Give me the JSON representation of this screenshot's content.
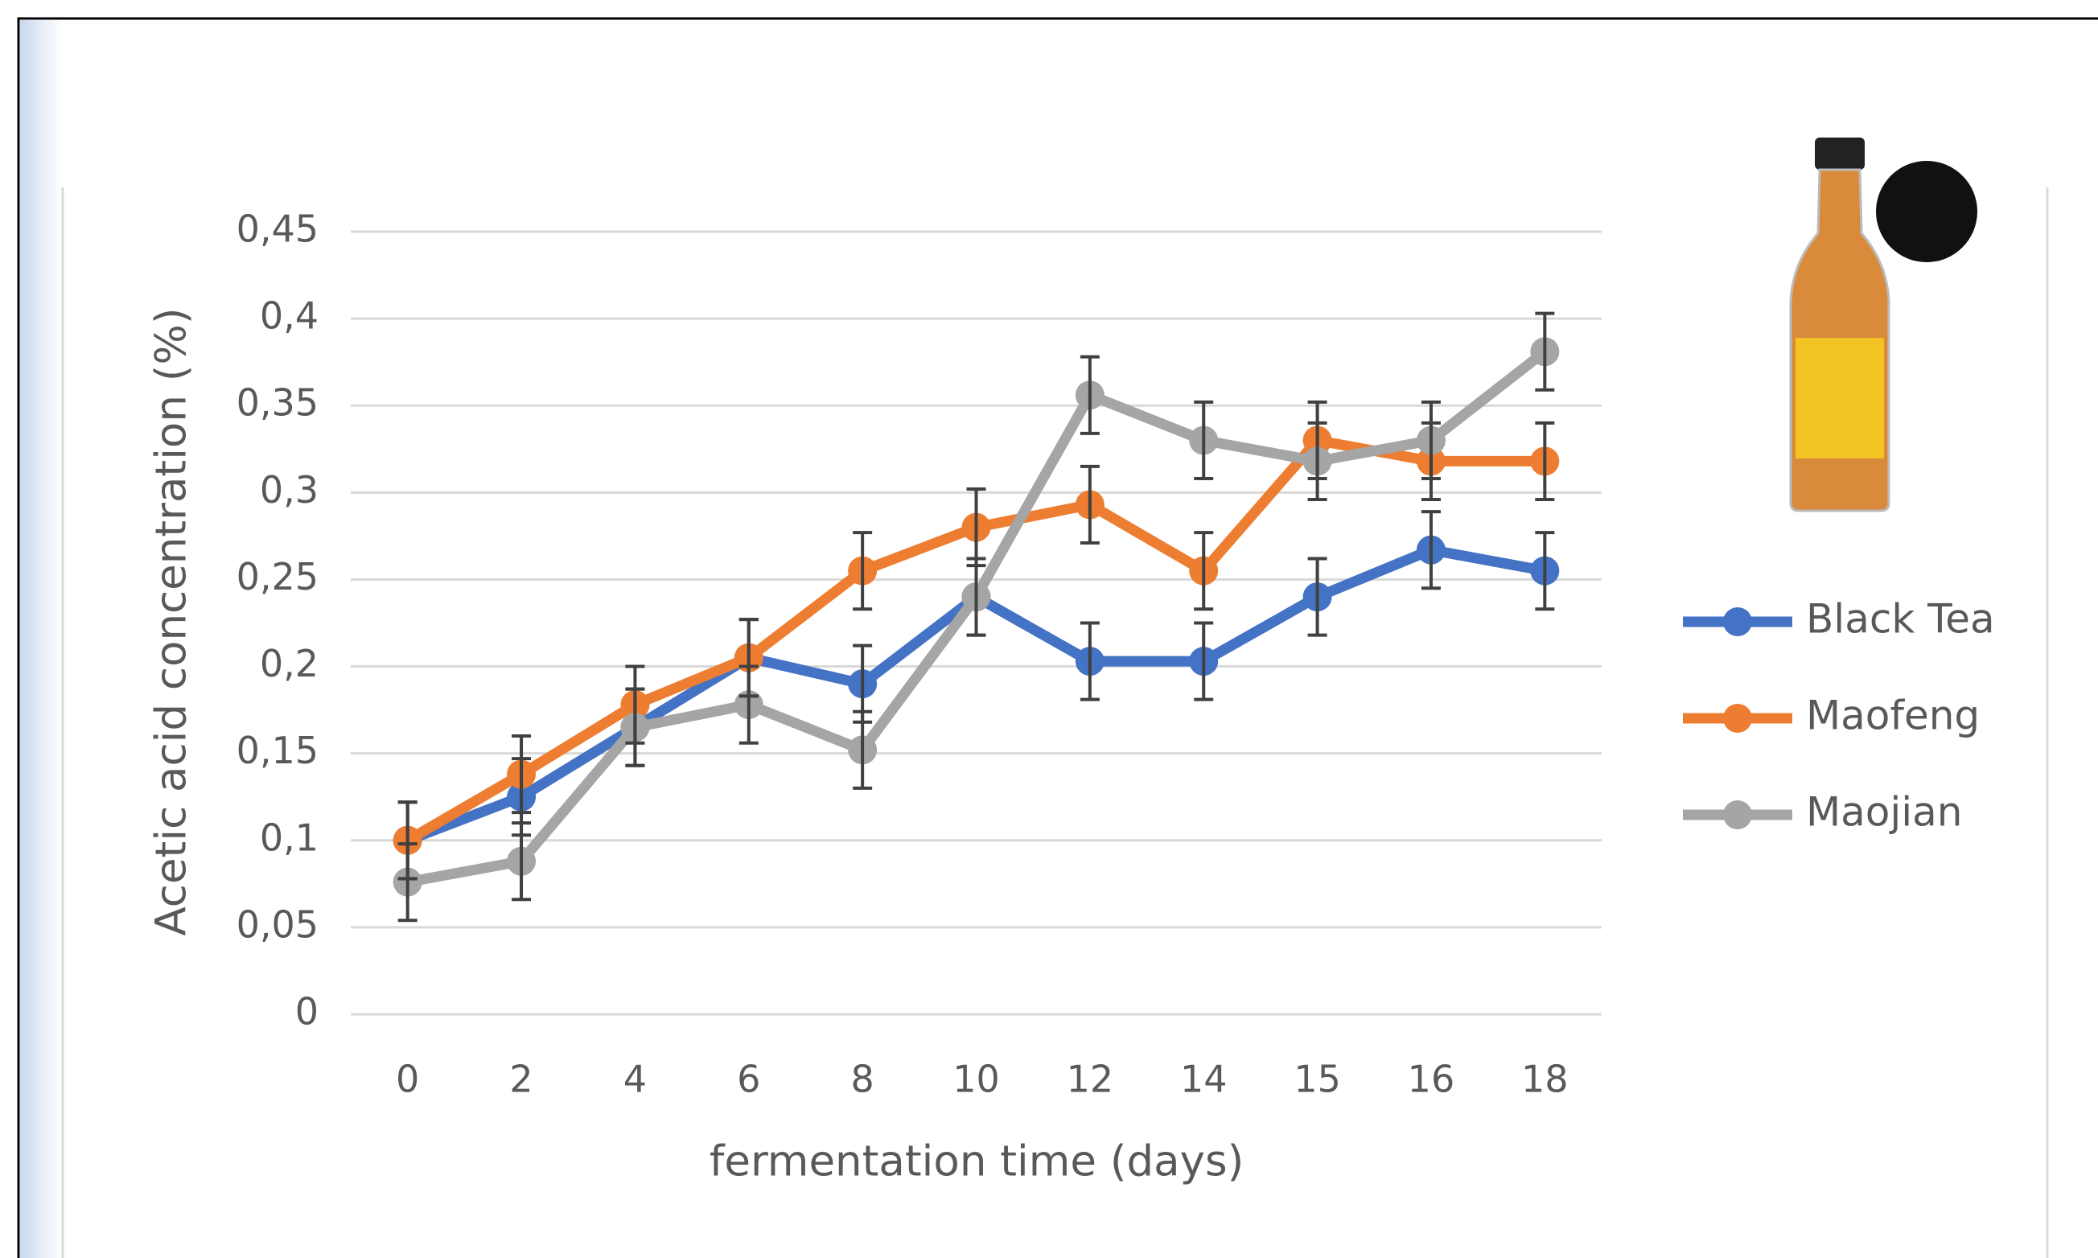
{
  "chart_data": {
    "type": "line",
    "x_label": "fermentation time (days)",
    "y_label": "Acetic acid concentration (%)",
    "categories": [
      "0",
      "2",
      "4",
      "6",
      "8",
      "10",
      "12",
      "14",
      "15",
      "16",
      "18"
    ],
    "series": [
      {
        "name": "Black Tea",
        "color": "#4472c4",
        "values": [
          0.1,
          0.125,
          0.165,
          0.205,
          0.19,
          0.24,
          0.203,
          0.203,
          0.24,
          0.267,
          0.255
        ],
        "errors": [
          0.022,
          0.022,
          0.022,
          0.022,
          0.022,
          0.022,
          0.022,
          0.022,
          0.022,
          0.022,
          0.022
        ]
      },
      {
        "name": "Maofeng",
        "color": "#ed7d31",
        "values": [
          0.1,
          0.138,
          0.178,
          0.205,
          0.255,
          0.28,
          0.293,
          0.255,
          0.33,
          0.318,
          0.318
        ],
        "errors": [
          0.022,
          0.022,
          0.022,
          0.022,
          0.022,
          0.022,
          0.022,
          0.022,
          0.022,
          0.022,
          0.022
        ]
      },
      {
        "name": "Maojian",
        "color": "#a5a5a5",
        "values": [
          0.076,
          0.088,
          0.165,
          0.178,
          0.152,
          0.24,
          0.356,
          0.33,
          0.318,
          0.33,
          0.381
        ],
        "errors": [
          0.022,
          0.022,
          0.022,
          0.022,
          0.022,
          0.022,
          0.022,
          0.022,
          0.022,
          0.022,
          0.022
        ]
      }
    ],
    "ylim": [
      0,
      0.45
    ],
    "yticks": [
      0,
      {
        "value": 0.05,
        "label": "0,05"
      },
      {
        "value": 0.1,
        "label": "0,1"
      },
      {
        "value": 0.15,
        "label": "0,15"
      },
      {
        "value": 0.2,
        "label": "0,2"
      },
      {
        "value": 0.25,
        "label": "0,25"
      },
      {
        "value": 0.3,
        "label": "0,3"
      },
      {
        "value": 0.35,
        "label": "0,35"
      },
      {
        "value": 0.4,
        "label": "0,4"
      },
      {
        "value": 0.45,
        "label": "0,45"
      }
    ],
    "grid": true,
    "legend": "right"
  }
}
